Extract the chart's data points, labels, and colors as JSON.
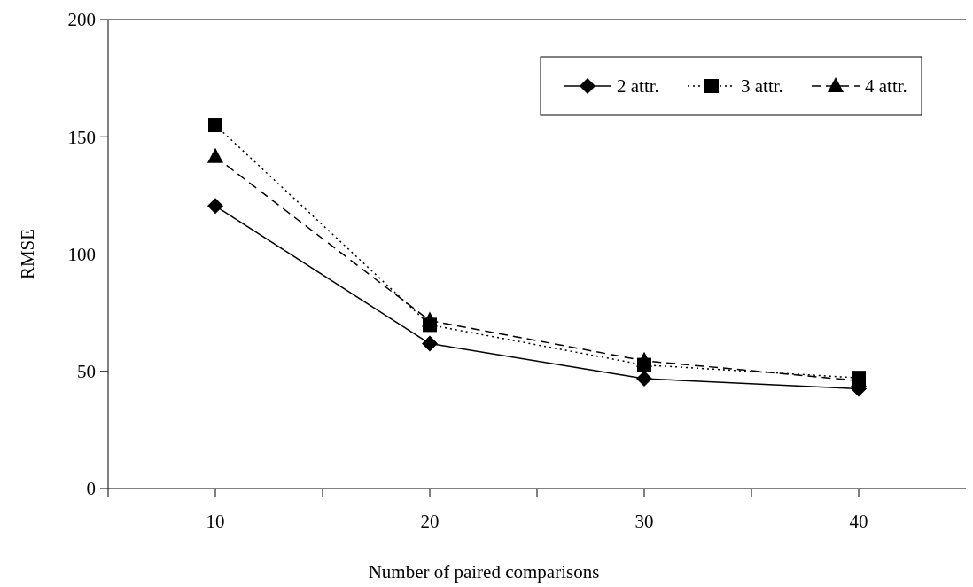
{
  "chart_data": {
    "type": "line",
    "xlabel": "Number of paired comparisons",
    "ylabel": "RMSE",
    "x": [
      10,
      20,
      30,
      40
    ],
    "xlim": [
      5,
      45
    ],
    "xticks": [
      {
        "value": 5,
        "label": null
      },
      10,
      {
        "value": 15,
        "label": null
      },
      20,
      {
        "value": 25,
        "label": null
      },
      30,
      {
        "value": 35,
        "label": null
      },
      40
    ],
    "ylim": [
      0,
      200
    ],
    "yticks": [
      0,
      50,
      100,
      150,
      200
    ],
    "grid": false,
    "legend": "top right",
    "series": [
      {
        "name": "2 attr.",
        "color": "#000000",
        "marker": "diamond",
        "line_style": "solid",
        "values": [
          120.5,
          61.8,
          46.9,
          42.5
        ]
      },
      {
        "name": "3 attr.",
        "color": "#000000",
        "marker": "square",
        "line_style": "dotted",
        "values": [
          155,
          69.8,
          52.7,
          47.2
        ]
      },
      {
        "name": "4 attr.",
        "color": "#000000",
        "marker": "triangle",
        "line_style": "dashed",
        "values": [
          141.5,
          71.6,
          54.5,
          46
        ]
      }
    ]
  }
}
